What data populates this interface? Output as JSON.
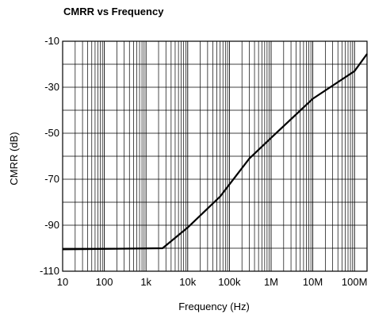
{
  "chart_data": {
    "type": "line",
    "title": "CMRR vs Frequency",
    "xlabel": "Frequency (Hz)",
    "ylabel": "CMRR (dB)",
    "x_scale": "log",
    "xlim": [
      10,
      200000000
    ],
    "ylim": [
      -110,
      -10
    ],
    "x_ticks": [
      {
        "value": 10,
        "label": "10"
      },
      {
        "value": 100,
        "label": "100"
      },
      {
        "value": 1000,
        "label": "1k"
      },
      {
        "value": 10000,
        "label": "10k"
      },
      {
        "value": 100000,
        "label": "100k"
      },
      {
        "value": 1000000,
        "label": "1M"
      },
      {
        "value": 10000000,
        "label": "10M"
      },
      {
        "value": 100000000,
        "label": "100M"
      }
    ],
    "y_ticks": [
      {
        "value": -10,
        "label": "-10"
      },
      {
        "value": -30,
        "label": "-30"
      },
      {
        "value": -50,
        "label": "-50"
      },
      {
        "value": -70,
        "label": "-70"
      },
      {
        "value": -90,
        "label": "-90"
      },
      {
        "value": -110,
        "label": "-110"
      }
    ],
    "grid": true,
    "series": [
      {
        "x": [
          10,
          2500,
          10000,
          60000,
          300000,
          1000000,
          10000000,
          100000000,
          200000000
        ],
        "y": [
          -100.5,
          -100,
          -91,
          -77.5,
          -61,
          -52,
          -35,
          -23,
          -15.5
        ]
      }
    ]
  },
  "colors": {
    "line": "#000000",
    "grid": "#000000",
    "background": "#ffffff"
  }
}
